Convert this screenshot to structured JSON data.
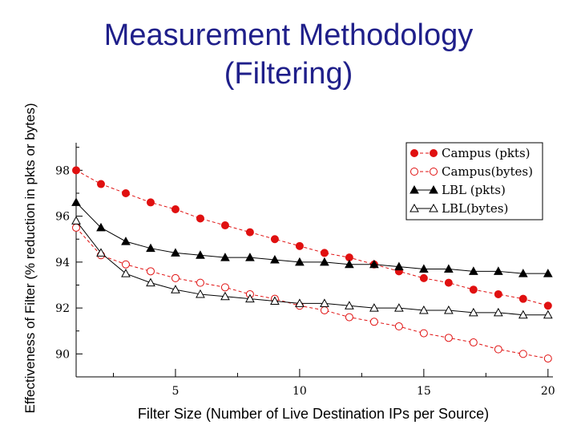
{
  "slide": {
    "title_line1": "Measurement Methodology",
    "title_line2": "(Filtering)"
  },
  "chart_data": {
    "type": "line",
    "xlabel": "Filter Size (Number of Live Destination IPs per Source)",
    "ylabel": "Effectiveness of Filter (% reduction in pkts or bytes)",
    "xlim": [
      1,
      20.2
    ],
    "ylim": [
      89,
      99.2
    ],
    "xticks": [
      5,
      10,
      15,
      20
    ],
    "yticks": [
      90,
      92,
      94,
      96,
      98
    ],
    "grid": false,
    "legend_position": "top-right",
    "x": [
      1,
      2,
      3,
      4,
      5,
      6,
      7,
      8,
      9,
      10,
      11,
      12,
      13,
      14,
      15,
      16,
      17,
      18,
      19,
      20
    ],
    "series": [
      {
        "name": "Campus (pkts)",
        "color": "#e01010",
        "line_style": "dashed",
        "marker": "filled-circle",
        "values": [
          98.0,
          97.4,
          97.0,
          96.6,
          96.3,
          95.9,
          95.6,
          95.3,
          95.0,
          94.7,
          94.4,
          94.2,
          93.9,
          93.6,
          93.3,
          93.1,
          92.8,
          92.6,
          92.4,
          92.1
        ]
      },
      {
        "name": "Campus(bytes)",
        "color": "#e01010",
        "line_style": "dashed",
        "marker": "open-circle",
        "values": [
          95.5,
          94.3,
          93.9,
          93.6,
          93.3,
          93.1,
          92.9,
          92.6,
          92.4,
          92.1,
          91.9,
          91.6,
          91.4,
          91.2,
          90.9,
          90.7,
          90.5,
          90.2,
          90.0,
          89.8
        ]
      },
      {
        "name": "LBL (pkts)",
        "color": "#000000",
        "line_style": "solid",
        "marker": "filled-triangle",
        "values": [
          96.6,
          95.5,
          94.9,
          94.6,
          94.4,
          94.3,
          94.2,
          94.2,
          94.1,
          94.0,
          94.0,
          93.9,
          93.9,
          93.8,
          93.7,
          93.7,
          93.6,
          93.6,
          93.5,
          93.5
        ]
      },
      {
        "name": "LBL(bytes)",
        "color": "#000000",
        "line_style": "solid",
        "marker": "open-triangle",
        "values": [
          95.8,
          94.4,
          93.5,
          93.1,
          92.8,
          92.6,
          92.5,
          92.4,
          92.3,
          92.2,
          92.2,
          92.1,
          92.0,
          92.0,
          91.9,
          91.9,
          91.8,
          91.8,
          91.7,
          91.7
        ]
      }
    ]
  }
}
